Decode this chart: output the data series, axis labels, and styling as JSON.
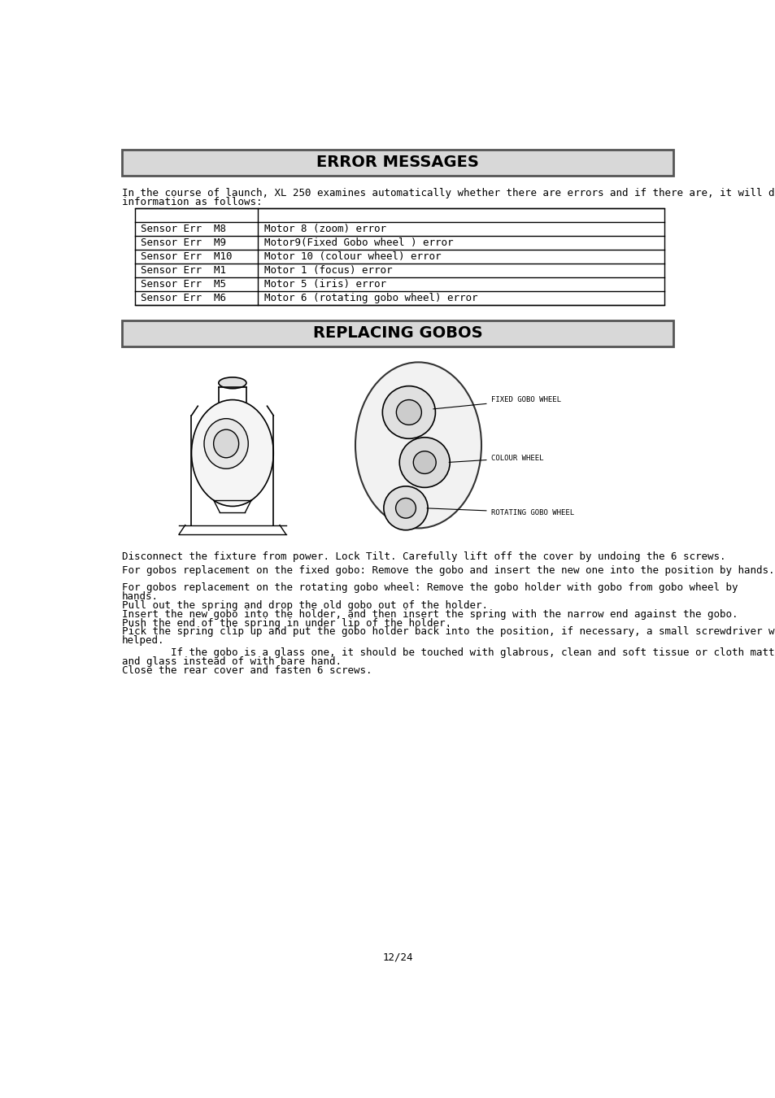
{
  "bg_color": "#ffffff",
  "header1": "ERROR MESSAGES",
  "header2": "REPLACING GOBOS",
  "header_bg": "#d8d8d8",
  "header_border": "#555555",
  "intro_line1": "In the course of launch, XL 250 examines automatically whether there are errors and if there are, it will display",
  "intro_line2": "information as follows:",
  "table_rows": [
    [
      "Sensor Err  M8",
      "Motor 8 (zoom) error"
    ],
    [
      "Sensor Err  M9",
      "Motor9(Fixed Gobo wheel ) error"
    ],
    [
      "Sensor Err  M10",
      "Motor 10 (colour wheel) error"
    ],
    [
      "Sensor Err  M1",
      "Motor 1 (focus) error"
    ],
    [
      "Sensor Err  M5",
      "Motor 5 (iris) error"
    ],
    [
      "Sensor Err  M6",
      "Motor 6 (rotating gobo wheel) error"
    ]
  ],
  "disconnect_text": "Disconnect the fixture from power. Lock Tilt. Carefully lift off the cover by undoing the 6 screws.",
  "fixed_gobo_text": "For gobos replacement on the fixed gobo: Remove the gobo and insert the new one into the position by hands.",
  "rotating_line1": "For gobos replacement on the rotating gobo wheel: Remove the gobo holder with gobo from gobo wheel by",
  "rotating_line2": "hands.",
  "step1": "Pull out the spring and drop the old gobo out of the holder.",
  "step2": "Insert the new gobo into the holder, and then insert the spring with the narrow end against the gobo.",
  "step3": "Push the end of the spring in under lip of the holder.",
  "step4_line1": "Pick the spring clip up and put the gobo holder back into the position, if necessary, a small screwdriver will be",
  "step4_line2": "helped.",
  "glass_line1": "        If the gobo is a glass one, it should be touched with glabrous, clean and soft tissue or cloth matted between hand",
  "glass_line2": "and glass instead of with bare hand.",
  "close_text": "Close the rear cover and fasten 6 screws.",
  "label_fixed": "FIXED GOBO WHEEL",
  "label_colour": "COLOUR WHEEL",
  "label_rotating": "ROTATING GOBO WHEEL",
  "page_num": "12/24"
}
